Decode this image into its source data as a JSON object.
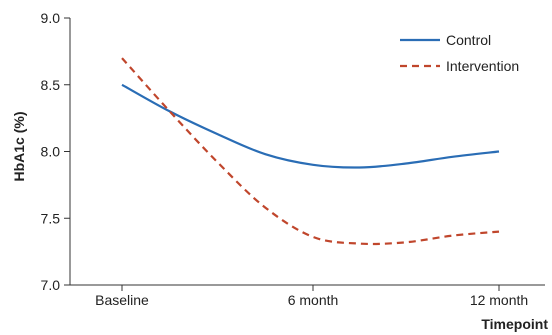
{
  "chart_data": {
    "type": "line",
    "xlabel": "Timepoint",
    "ylabel": "HbA1c (%)",
    "categories": [
      "Baseline",
      "6 month",
      "12 month"
    ],
    "ylim": [
      7.0,
      9.0
    ],
    "yticks": [
      "7.0",
      "7.5",
      "8.0",
      "8.5",
      "9.0"
    ],
    "grid": false,
    "legend_position": "top-right",
    "series": [
      {
        "name": "Control",
        "style": "solid",
        "color": "#2a6db5",
        "x": [
          0,
          0.25,
          0.5,
          0.75,
          1.0,
          1.25,
          1.5,
          1.75,
          2.0
        ],
        "values": [
          8.5,
          8.3,
          8.13,
          7.98,
          7.9,
          7.88,
          7.91,
          7.96,
          8.0
        ]
      },
      {
        "name": "Intervention",
        "style": "dashed",
        "color": "#c0462c",
        "x": [
          0,
          0.25,
          0.5,
          0.75,
          1.0,
          1.25,
          1.5,
          1.75,
          2.0
        ],
        "values": [
          8.7,
          8.3,
          7.92,
          7.58,
          7.36,
          7.31,
          7.32,
          7.37,
          7.4
        ]
      }
    ]
  }
}
